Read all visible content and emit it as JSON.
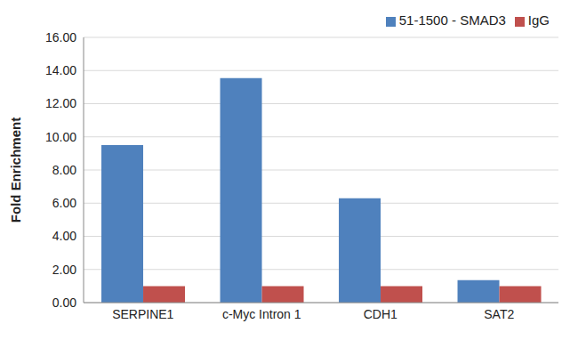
{
  "chart_data": {
    "type": "bar",
    "y_label": "Fold Enrichment",
    "categories": [
      "SERPINE1",
      "c-Myc Intron 1",
      "CDH1",
      "SAT2"
    ],
    "series": [
      {
        "name": "51-1500 - SMAD3",
        "color": "#4f81bd",
        "values": [
          9.5,
          13.55,
          6.3,
          1.35
        ]
      },
      {
        "name": "IgG",
        "color": "#c0504d",
        "values": [
          1,
          1,
          1,
          1
        ]
      }
    ],
    "ylim": [
      0,
      16
    ],
    "yticks": [
      {
        "value": 0,
        "label": "0.00"
      },
      {
        "value": 2,
        "label": "2.00"
      },
      {
        "value": 4,
        "label": "4.00"
      },
      {
        "value": 6,
        "label": "6.00"
      },
      {
        "value": 8,
        "label": "8.00"
      },
      {
        "value": 10,
        "label": "10.00"
      },
      {
        "value": 12,
        "label": "12.00"
      },
      {
        "value": 14,
        "label": "14.00"
      },
      {
        "value": 16,
        "label": "16.00"
      }
    ],
    "grid": true,
    "legend": "top-right"
  }
}
